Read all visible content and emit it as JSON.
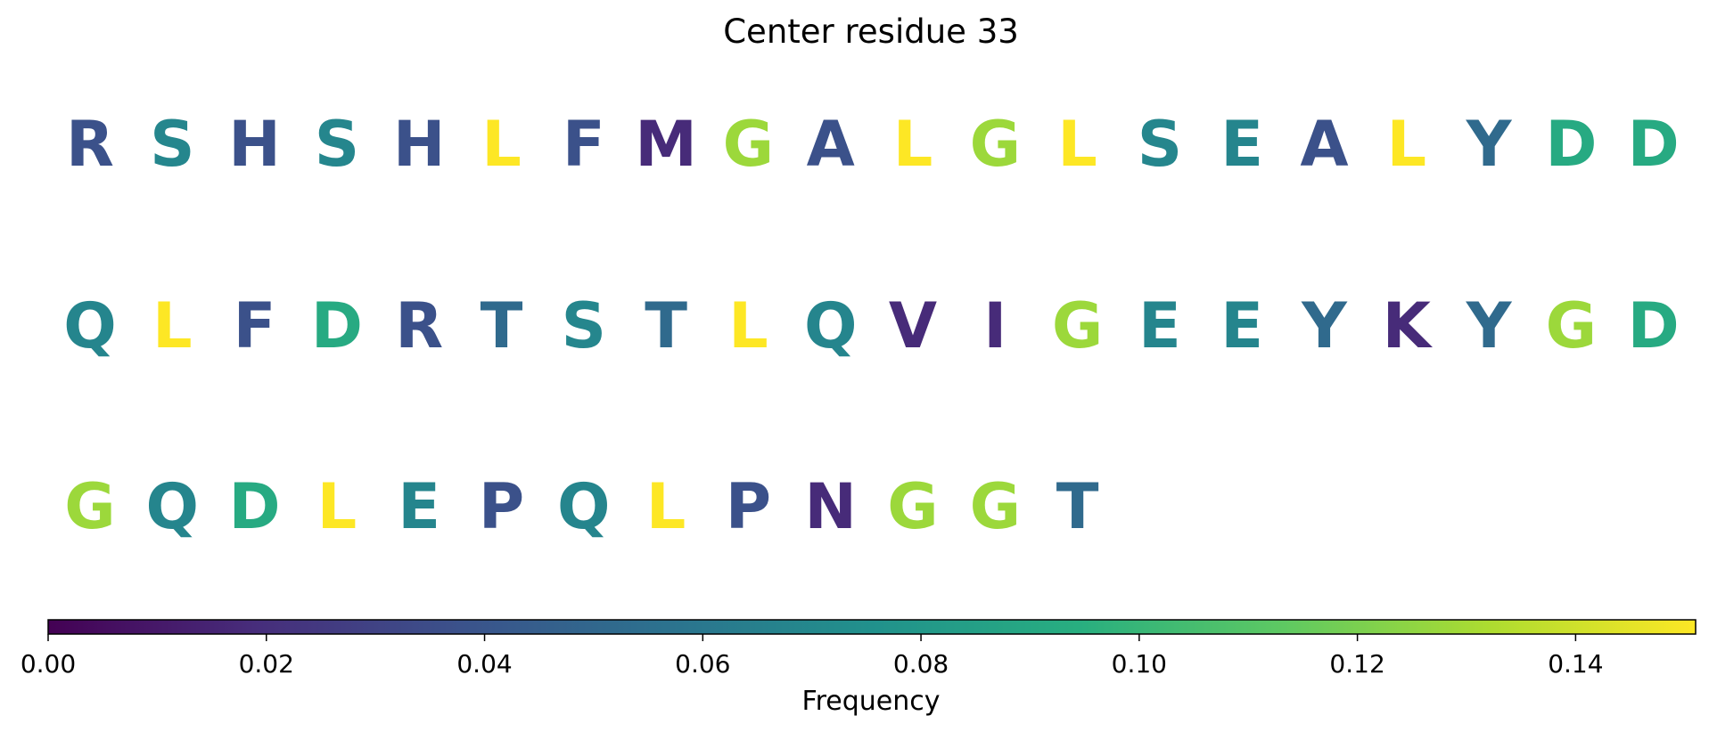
{
  "chart_data": {
    "type": "heatmap",
    "title": "Center residue 33",
    "colorbar": {
      "label": "Frequency",
      "range": [
        0,
        0.151
      ],
      "ticks": [
        "0.00",
        "0.02",
        "0.04",
        "0.06",
        "0.08",
        "0.10",
        "0.12",
        "0.14"
      ],
      "tick_values": [
        0.0,
        0.02,
        0.04,
        0.06,
        0.08,
        0.1,
        0.12,
        0.14
      ],
      "colormap": "viridis"
    },
    "rows": [
      [
        {
          "residue": "R",
          "frequency": 0.037
        },
        {
          "residue": "S",
          "frequency": 0.069
        },
        {
          "residue": "H",
          "frequency": 0.037
        },
        {
          "residue": "S",
          "frequency": 0.069
        },
        {
          "residue": "H",
          "frequency": 0.037
        },
        {
          "residue": "L",
          "frequency": 0.151
        },
        {
          "residue": "F",
          "frequency": 0.037
        },
        {
          "residue": "M",
          "frequency": 0.018
        },
        {
          "residue": "G",
          "frequency": 0.128
        },
        {
          "residue": "A",
          "frequency": 0.037
        },
        {
          "residue": "L",
          "frequency": 0.151
        },
        {
          "residue": "G",
          "frequency": 0.128
        },
        {
          "residue": "L",
          "frequency": 0.151
        },
        {
          "residue": "S",
          "frequency": 0.069
        },
        {
          "residue": "E",
          "frequency": 0.068
        },
        {
          "residue": "A",
          "frequency": 0.037
        },
        {
          "residue": "L",
          "frequency": 0.151
        },
        {
          "residue": "Y",
          "frequency": 0.052
        },
        {
          "residue": "D",
          "frequency": 0.092
        },
        {
          "residue": "D",
          "frequency": 0.092
        }
      ],
      [
        {
          "residue": "Q",
          "frequency": 0.068
        },
        {
          "residue": "L",
          "frequency": 0.151
        },
        {
          "residue": "F",
          "frequency": 0.037
        },
        {
          "residue": "D",
          "frequency": 0.092
        },
        {
          "residue": "R",
          "frequency": 0.037
        },
        {
          "residue": "T",
          "frequency": 0.052
        },
        {
          "residue": "S",
          "frequency": 0.069
        },
        {
          "residue": "T",
          "frequency": 0.052
        },
        {
          "residue": "L",
          "frequency": 0.151
        },
        {
          "residue": "Q",
          "frequency": 0.068
        },
        {
          "residue": "V",
          "frequency": 0.018
        },
        {
          "residue": "I",
          "frequency": 0.018
        },
        {
          "residue": "G",
          "frequency": 0.128
        },
        {
          "residue": "E",
          "frequency": 0.068
        },
        {
          "residue": "E",
          "frequency": 0.068
        },
        {
          "residue": "Y",
          "frequency": 0.052
        },
        {
          "residue": "K",
          "frequency": 0.018
        },
        {
          "residue": "Y",
          "frequency": 0.052
        },
        {
          "residue": "G",
          "frequency": 0.128
        },
        {
          "residue": "D",
          "frequency": 0.092
        }
      ],
      [
        {
          "residue": "G",
          "frequency": 0.128
        },
        {
          "residue": "Q",
          "frequency": 0.068
        },
        {
          "residue": "D",
          "frequency": 0.092
        },
        {
          "residue": "L",
          "frequency": 0.151
        },
        {
          "residue": "E",
          "frequency": 0.068
        },
        {
          "residue": "P",
          "frequency": 0.037
        },
        {
          "residue": "Q",
          "frequency": 0.068
        },
        {
          "residue": "L",
          "frequency": 0.151
        },
        {
          "residue": "P",
          "frequency": 0.037
        },
        {
          "residue": "N",
          "frequency": 0.018
        },
        {
          "residue": "G",
          "frequency": 0.128
        },
        {
          "residue": "G",
          "frequency": 0.128
        },
        {
          "residue": "T",
          "frequency": 0.052
        }
      ]
    ]
  }
}
